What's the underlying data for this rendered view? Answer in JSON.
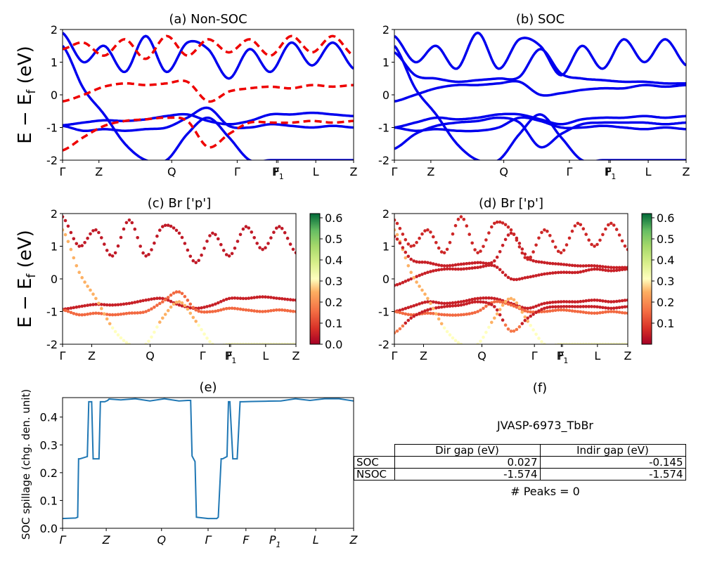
{
  "figure": {
    "ylabel_main": "E − E",
    "ylabel_sub": "f",
    "ylabel_unit": " (eV)"
  },
  "chart_data": [
    {
      "type": "line",
      "id": "a",
      "title": "(a) Non-SOC",
      "xticks": [
        "Γ",
        "Z",
        "Q",
        "Γ",
        "F",
        "P",
        "L",
        "Z"
      ],
      "xticks_sub": [
        "",
        "",
        "",
        "",
        "",
        "1",
        "",
        ""
      ],
      "xtick_positions": [
        0,
        0.125,
        0.375,
        0.6,
        0.735,
        0.74,
        0.87,
        1.0
      ],
      "ylim": [
        -2,
        2
      ],
      "yticks": [
        -2,
        -1,
        0,
        1,
        2
      ],
      "series": [
        {
          "style": "solid",
          "color": "#0000ee",
          "values": [
            -0.93,
            -0.85,
            -0.78,
            -0.8,
            -0.75,
            -0.65,
            -0.6,
            -0.8,
            -0.9,
            -0.8,
            -0.6,
            -0.6,
            -0.55,
            -0.6,
            -0.65
          ]
        },
        {
          "style": "solid",
          "color": "#0000ee",
          "values": [
            -0.95,
            -1.1,
            -1.05,
            -1.1,
            -1.05,
            -1.0,
            -0.7,
            -0.4,
            -0.95,
            -1.0,
            -0.9,
            -0.95,
            -1.0,
            -0.95,
            -1.0
          ]
        },
        {
          "style": "solid",
          "color": "#0000ee",
          "values": [
            1.5,
            0.2,
            -0.6,
            -1.5,
            -2.0,
            -2.0,
            -1.2,
            -0.7,
            -1.3,
            -2.0,
            -2.0,
            -2.0,
            -2.0,
            -2.0,
            -2.0
          ]
        },
        {
          "style": "solid",
          "color": "#0000ee",
          "values": [
            1.9,
            1.0,
            1.5,
            0.7,
            1.8,
            0.7,
            1.6,
            1.4,
            0.5,
            1.4,
            0.7,
            1.6,
            0.9,
            1.6,
            0.8
          ]
        },
        {
          "style": "dashed",
          "color": "#ee0000",
          "values": [
            -1.7,
            -1.3,
            -0.95,
            -0.8,
            -0.75,
            -0.7,
            -0.8,
            -1.6,
            -1.2,
            -0.85,
            -0.85,
            -0.85,
            -0.8,
            -0.85,
            -0.8
          ]
        },
        {
          "style": "dashed",
          "color": "#ee0000",
          "values": [
            -0.2,
            0.0,
            0.25,
            0.35,
            0.3,
            0.35,
            0.4,
            -0.2,
            0.1,
            0.2,
            0.25,
            0.2,
            0.3,
            0.25,
            0.3
          ]
        },
        {
          "style": "dashed",
          "color": "#ee0000",
          "values": [
            1.4,
            1.6,
            1.2,
            1.7,
            1.1,
            1.8,
            1.2,
            1.7,
            1.3,
            1.7,
            1.2,
            1.8,
            1.3,
            1.8,
            1.2
          ]
        }
      ]
    },
    {
      "type": "line",
      "id": "b",
      "title": "(b) SOC",
      "xticks": [
        "Γ",
        "Z",
        "Q",
        "Γ",
        "F",
        "P",
        "L",
        "Z"
      ],
      "xticks_sub": [
        "",
        "",
        "",
        "",
        "",
        "1",
        "",
        ""
      ],
      "xtick_positions": [
        0,
        0.125,
        0.375,
        0.6,
        0.735,
        0.74,
        0.87,
        1.0
      ],
      "ylim": [
        -2,
        2
      ],
      "yticks": [
        -2,
        -1,
        0,
        1,
        2
      ],
      "series": [
        {
          "style": "solid",
          "color": "#0000ee",
          "values": [
            -1.0,
            -0.85,
            -0.7,
            -0.75,
            -0.7,
            -0.6,
            -0.6,
            -0.75,
            -0.9,
            -0.75,
            -0.7,
            -0.7,
            -0.65,
            -0.7,
            -0.65
          ]
        },
        {
          "style": "solid",
          "color": "#0000ee",
          "values": [
            -1.0,
            -1.1,
            -1.05,
            -1.1,
            -1.1,
            -1.0,
            -0.7,
            -0.8,
            -1.0,
            -1.0,
            -0.95,
            -1.0,
            -1.05,
            -1.0,
            -1.05
          ]
        },
        {
          "style": "solid",
          "color": "#0000ee",
          "values": [
            -1.65,
            -1.2,
            -0.95,
            -0.85,
            -0.8,
            -0.7,
            -0.85,
            -1.6,
            -1.2,
            -0.9,
            -0.85,
            -0.85,
            -0.85,
            -0.9,
            -0.85
          ]
        },
        {
          "style": "solid",
          "color": "#0000ee",
          "values": [
            -0.2,
            0.0,
            0.2,
            0.3,
            0.3,
            0.35,
            0.4,
            0.0,
            0.05,
            0.15,
            0.2,
            0.2,
            0.3,
            0.25,
            0.3
          ]
        },
        {
          "style": "solid",
          "color": "#0000ee",
          "values": [
            1.5,
            0.2,
            -0.6,
            -1.5,
            -2.0,
            -2.0,
            -1.2,
            -0.6,
            -1.3,
            -2.0,
            -2.0,
            -2.0,
            -2.0,
            -2.0,
            -2.0
          ]
        },
        {
          "style": "solid",
          "color": "#0000ee",
          "values": [
            1.3,
            0.6,
            0.5,
            0.4,
            0.45,
            0.5,
            0.55,
            1.4,
            0.65,
            0.5,
            0.45,
            0.4,
            0.4,
            0.35,
            0.35
          ]
        },
        {
          "style": "solid",
          "color": "#0000ee",
          "values": [
            1.8,
            1.0,
            1.5,
            0.8,
            1.9,
            0.8,
            1.7,
            1.5,
            0.6,
            1.5,
            0.8,
            1.7,
            1.0,
            1.7,
            0.9
          ]
        }
      ]
    },
    {
      "type": "scatter",
      "id": "c",
      "title": "(c)  Br ['p']",
      "xticks": [
        "Γ",
        "Z",
        "Q",
        "Γ",
        "F",
        "P",
        "L",
        "Z"
      ],
      "xticks_sub": [
        "",
        "",
        "",
        "",
        "",
        "1",
        "",
        ""
      ],
      "xtick_positions": [
        0,
        0.125,
        0.375,
        0.6,
        0.715,
        0.72,
        0.87,
        1.0
      ],
      "ylim": [
        -2,
        2
      ],
      "yticks": [
        -2,
        -1,
        0,
        1,
        2
      ],
      "colorbar": {
        "ticks": [
          0.0,
          0.1,
          0.2,
          0.3,
          0.4,
          0.5,
          0.6
        ],
        "range": [
          0.0,
          0.62
        ]
      },
      "series": [
        {
          "weight": 0.05,
          "values": [
            -0.93,
            -0.85,
            -0.78,
            -0.8,
            -0.75,
            -0.65,
            -0.6,
            -0.8,
            -0.9,
            -0.8,
            -0.6,
            -0.6,
            -0.55,
            -0.6,
            -0.65
          ]
        },
        {
          "weight": 0.15,
          "values": [
            -0.95,
            -1.1,
            -1.05,
            -1.1,
            -1.05,
            -1.0,
            -0.7,
            -0.4,
            -0.95,
            -1.0,
            -0.9,
            -0.95,
            -1.0,
            -0.95,
            -1.0
          ]
        },
        {
          "weight": 0.25,
          "values": [
            1.5,
            0.2,
            -0.6,
            -1.5,
            -2.0,
            -2.0,
            -1.2,
            -0.7,
            -1.3,
            -2.0,
            -2.0,
            -2.0,
            -2.0,
            -2.0,
            -2.0
          ]
        },
        {
          "weight": 0.04,
          "values": [
            1.9,
            1.0,
            1.5,
            0.7,
            1.8,
            0.7,
            1.6,
            1.4,
            0.5,
            1.4,
            0.7,
            1.6,
            0.9,
            1.6,
            0.8
          ]
        }
      ]
    },
    {
      "type": "scatter",
      "id": "d",
      "title": "(d) Br ['p']",
      "xticks": [
        "Γ",
        "Z",
        "Q",
        "Γ",
        "F",
        "P",
        "L",
        "Z"
      ],
      "xticks_sub": [
        "",
        "",
        "",
        "",
        "",
        "1",
        "",
        ""
      ],
      "xtick_positions": [
        0,
        0.125,
        0.375,
        0.6,
        0.715,
        0.72,
        0.87,
        1.0
      ],
      "ylim": [
        -2,
        2
      ],
      "yticks": [
        -2,
        -1,
        0,
        1,
        2
      ],
      "colorbar": {
        "ticks": [
          0.1,
          0.2,
          0.3,
          0.4,
          0.5,
          0.6
        ],
        "range": [
          0.0,
          0.62
        ]
      },
      "series": [
        {
          "weight": 0.05,
          "values": [
            -1.0,
            -0.85,
            -0.7,
            -0.75,
            -0.7,
            -0.6,
            -0.6,
            -0.75,
            -0.9,
            -0.75,
            -0.7,
            -0.7,
            -0.65,
            -0.7,
            -0.65
          ]
        },
        {
          "weight": 0.15,
          "values": [
            -1.0,
            -1.1,
            -1.05,
            -1.1,
            -1.1,
            -1.0,
            -0.7,
            -0.8,
            -1.0,
            -1.0,
            -0.95,
            -1.0,
            -1.05,
            -1.0,
            -1.05
          ]
        },
        {
          "weight": 0.05,
          "values": [
            -1.65,
            -1.2,
            -0.95,
            -0.85,
            -0.8,
            -0.7,
            -0.85,
            -1.6,
            -1.2,
            -0.9,
            -0.85,
            -0.85,
            -0.85,
            -0.9,
            -0.85
          ]
        },
        {
          "weight": 0.05,
          "values": [
            -0.2,
            0.0,
            0.2,
            0.3,
            0.3,
            0.35,
            0.4,
            0.0,
            0.05,
            0.15,
            0.2,
            0.2,
            0.3,
            0.25,
            0.3
          ]
        },
        {
          "weight": 0.25,
          "values": [
            1.5,
            0.2,
            -0.6,
            -1.5,
            -2.0,
            -2.0,
            -1.2,
            -0.6,
            -1.3,
            -2.0,
            -2.0,
            -2.0,
            -2.0,
            -2.0,
            -2.0
          ]
        },
        {
          "weight": 0.05,
          "values": [
            1.3,
            0.6,
            0.5,
            0.4,
            0.45,
            0.5,
            0.55,
            1.4,
            0.65,
            0.5,
            0.45,
            0.4,
            0.4,
            0.35,
            0.35
          ]
        },
        {
          "weight": 0.06,
          "values": [
            1.8,
            1.0,
            1.5,
            0.8,
            1.9,
            0.8,
            1.7,
            1.5,
            0.6,
            1.5,
            0.8,
            1.7,
            1.0,
            1.7,
            0.9
          ]
        }
      ]
    },
    {
      "type": "line",
      "id": "e",
      "title": "(e)",
      "ylabel": "SOC spillage (chg. den. unit)",
      "xticks": [
        "Γ",
        "Z",
        "Q",
        "Γ",
        "F",
        "P",
        "L",
        "Z"
      ],
      "xticks_sub": [
        "",
        "",
        "",
        "",
        "",
        "1",
        "",
        ""
      ],
      "xtick_positions": [
        0,
        0.15,
        0.34,
        0.5,
        0.63,
        0.73,
        0.87,
        1.0
      ],
      "ylim": [
        0.0,
        0.47
      ],
      "yticks": [
        0.0,
        0.1,
        0.2,
        0.3,
        0.4
      ],
      "x": [
        0,
        0.045,
        0.052,
        0.055,
        0.06,
        0.085,
        0.09,
        0.1,
        0.105,
        0.11,
        0.125,
        0.13,
        0.135,
        0.145,
        0.155,
        0.16,
        0.2,
        0.25,
        0.3,
        0.35,
        0.4,
        0.43,
        0.44,
        0.445,
        0.455,
        0.46,
        0.5,
        0.53,
        0.535,
        0.545,
        0.55,
        0.565,
        0.57,
        0.575,
        0.585,
        0.59,
        0.6,
        0.61,
        0.615,
        0.62,
        0.65,
        0.7,
        0.75,
        0.8,
        0.85,
        0.9,
        0.95,
        1.0
      ],
      "values": [
        0.035,
        0.037,
        0.04,
        0.25,
        0.25,
        0.258,
        0.455,
        0.455,
        0.25,
        0.25,
        0.25,
        0.455,
        0.455,
        0.455,
        0.46,
        0.465,
        0.462,
        0.466,
        0.458,
        0.466,
        0.458,
        0.46,
        0.46,
        0.26,
        0.24,
        0.04,
        0.035,
        0.035,
        0.04,
        0.25,
        0.25,
        0.258,
        0.455,
        0.455,
        0.25,
        0.25,
        0.25,
        0.455,
        0.455,
        0.455,
        0.456,
        0.457,
        0.458,
        0.466,
        0.46,
        0.466,
        0.466,
        0.458
      ]
    }
  ],
  "panel_f": {
    "title": "(f)",
    "material": "JVASP-6973_TbBr",
    "table": {
      "col_headers": [
        "Dir gap (eV)",
        "Indir gap (eV)"
      ],
      "rows": [
        {
          "label": "SOC",
          "dir": "0.027",
          "indir": "-0.145"
        },
        {
          "label": "NSOC",
          "dir": "-1.574",
          "indir": "-1.574"
        }
      ]
    },
    "peaks": "# Peaks = 0"
  }
}
